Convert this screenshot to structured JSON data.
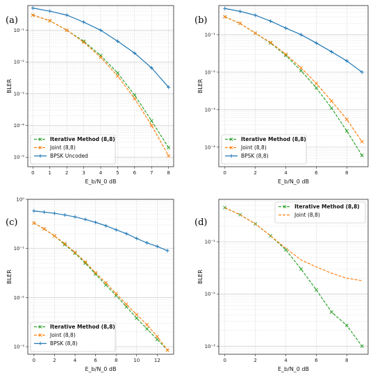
{
  "chart_data": [
    {
      "type": "line",
      "panel_label": "(a)",
      "xlabel": "E_b/N_0 dB",
      "ylabel": "BLER",
      "yscale": "log",
      "xlim": [
        -0.3,
        8.3
      ],
      "ylim": [
        5e-06,
        0.6
      ],
      "xticks": [
        0,
        1,
        2,
        3,
        4,
        5,
        6,
        7,
        8
      ],
      "yticks": [
        1e-05,
        0.0001,
        0.001,
        0.01,
        0.1
      ],
      "ytick_labels": [
        "10⁻⁵",
        "10⁻⁴",
        "10⁻³",
        "10⁻²",
        "10⁻¹"
      ],
      "grid": true,
      "legend_position": "lower-left",
      "series": [
        {
          "name": "Iterative Method (8,8)",
          "bold": true,
          "color": "#2ca02c",
          "dash": "4,2",
          "marker": "x",
          "x": [
            0,
            1,
            2,
            3,
            4,
            5,
            6,
            7,
            8
          ],
          "y": [
            0.3,
            0.2,
            0.1,
            0.045,
            0.016,
            0.0045,
            0.0009,
            0.00014,
            2e-05
          ]
        },
        {
          "name": "Joint (8,8)",
          "bold": false,
          "color": "#ff7f0e",
          "dash": "4,2",
          "marker": "x",
          "x": [
            0,
            1,
            2,
            3,
            4,
            5,
            6,
            7,
            8
          ],
          "y": [
            0.3,
            0.2,
            0.1,
            0.042,
            0.014,
            0.0036,
            0.0007,
            0.0001,
            1.1e-05
          ]
        },
        {
          "name": "BPSK Uncoded",
          "bold": false,
          "color": "#1f77b4",
          "dash": "",
          "marker": "+",
          "x": [
            0,
            1,
            2,
            3,
            4,
            5,
            6,
            7,
            8
          ],
          "y": [
            0.5,
            0.4,
            0.3,
            0.18,
            0.1,
            0.045,
            0.019,
            0.0065,
            0.0016
          ]
        }
      ]
    },
    {
      "type": "line",
      "panel_label": "(b)",
      "xlabel": "E_b/N_0 dB",
      "ylabel": "BLER",
      "yscale": "log",
      "xlim": [
        -0.4,
        9.4
      ],
      "ylim": [
        3e-05,
        0.6
      ],
      "xticks": [
        0,
        2,
        4,
        6,
        8
      ],
      "yticks": [
        0.0001,
        0.001,
        0.01,
        0.1
      ],
      "ytick_labels": [
        "10⁻⁴",
        "10⁻³",
        "10⁻²",
        "10⁻¹"
      ],
      "grid": true,
      "legend_position": "lower-left",
      "series": [
        {
          "name": "Iterative Method (8,8)",
          "bold": true,
          "color": "#2ca02c",
          "dash": "4,2",
          "marker": "x",
          "x": [
            0,
            1,
            2,
            3,
            4,
            5,
            6,
            7,
            8,
            9
          ],
          "y": [
            0.3,
            0.2,
            0.11,
            0.06,
            0.028,
            0.011,
            0.0038,
            0.0011,
            0.00027,
            6e-05
          ]
        },
        {
          "name": "Joint (8,8)",
          "bold": false,
          "color": "#ff7f0e",
          "dash": "4,2",
          "marker": "x",
          "x": [
            0,
            1,
            2,
            3,
            4,
            5,
            6,
            7,
            8,
            9
          ],
          "y": [
            0.3,
            0.2,
            0.11,
            0.062,
            0.03,
            0.013,
            0.005,
            0.0017,
            0.00055,
            0.00014
          ]
        },
        {
          "name": "BPSK (8,8)",
          "bold": false,
          "color": "#1f77b4",
          "dash": "",
          "marker": "+",
          "x": [
            0,
            1,
            2,
            3,
            4,
            5,
            6,
            7,
            8,
            9
          ],
          "y": [
            0.5,
            0.42,
            0.33,
            0.23,
            0.15,
            0.1,
            0.06,
            0.035,
            0.02,
            0.01
          ]
        }
      ]
    },
    {
      "type": "line",
      "panel_label": "(c)",
      "xlabel": "E_b/N_0 dB",
      "ylabel": "BLER",
      "yscale": "log",
      "xlim": [
        -0.6,
        13.6
      ],
      "ylim": [
        0.0007,
        1
      ],
      "xticks": [
        0,
        2,
        4,
        6,
        8,
        10,
        12
      ],
      "yticks": [
        0.001,
        0.01,
        0.1,
        1
      ],
      "ytick_labels": [
        "10⁻³",
        "10⁻²",
        "10⁻¹",
        "10⁰"
      ],
      "grid": true,
      "legend_position": "lower-left",
      "series": [
        {
          "name": "Iterative Method (8,8)",
          "bold": true,
          "color": "#2ca02c",
          "dash": "4,2",
          "marker": "x",
          "x": [
            0,
            1,
            2,
            3,
            4,
            5,
            6,
            7,
            8,
            9,
            10,
            11,
            12,
            13
          ],
          "y": [
            0.33,
            0.25,
            0.18,
            0.12,
            0.08,
            0.05,
            0.03,
            0.018,
            0.011,
            0.0065,
            0.0038,
            0.0023,
            0.0014,
            0.00085
          ]
        },
        {
          "name": "Joint (8,8)",
          "bold": false,
          "color": "#ff7f0e",
          "dash": "4,2",
          "marker": "x",
          "x": [
            0,
            1,
            2,
            3,
            4,
            5,
            6,
            7,
            8,
            9,
            10,
            11,
            12,
            13
          ],
          "y": [
            0.33,
            0.25,
            0.18,
            0.125,
            0.083,
            0.053,
            0.032,
            0.02,
            0.012,
            0.0073,
            0.0045,
            0.0028,
            0.0016,
            0.00085
          ]
        },
        {
          "name": "BPSK (8,8)",
          "bold": false,
          "color": "#1f77b4",
          "dash": "",
          "marker": "+",
          "x": [
            0,
            1,
            2,
            3,
            4,
            5,
            6,
            7,
            8,
            9,
            10,
            11,
            12,
            13
          ],
          "y": [
            0.58,
            0.55,
            0.52,
            0.48,
            0.44,
            0.39,
            0.34,
            0.29,
            0.24,
            0.2,
            0.16,
            0.13,
            0.11,
            0.09
          ]
        }
      ]
    },
    {
      "type": "line",
      "panel_label": "(d)",
      "xlabel": "E_b/N_0 dB",
      "ylabel": "BLER",
      "yscale": "log",
      "xlim": [
        -0.4,
        9.4
      ],
      "ylim": [
        0.0007,
        0.65
      ],
      "xticks": [
        0,
        2,
        4,
        6,
        8
      ],
      "yticks": [
        0.001,
        0.01,
        0.1
      ],
      "ytick_labels": [
        "10⁻³",
        "10⁻²",
        "10⁻¹"
      ],
      "grid": true,
      "legend_position": "top-right",
      "series": [
        {
          "name": "Iterative Method (8,8)",
          "bold": true,
          "color": "#2ca02c",
          "dash": "4,2",
          "marker": "x",
          "x": [
            0,
            1,
            2,
            3,
            4,
            5,
            6,
            7,
            8,
            9
          ],
          "y": [
            0.45,
            0.33,
            0.22,
            0.13,
            0.07,
            0.03,
            0.012,
            0.0045,
            0.0025,
            0.001
          ]
        },
        {
          "name": "Joint (8,8)",
          "bold": false,
          "color": "#ff7f0e",
          "dash": "4,2",
          "marker": "",
          "x": [
            0,
            1,
            2,
            3,
            4,
            5,
            6,
            7,
            8,
            9
          ],
          "y": [
            0.45,
            0.33,
            0.22,
            0.13,
            0.075,
            0.045,
            0.033,
            0.025,
            0.02,
            0.018
          ]
        }
      ]
    }
  ]
}
